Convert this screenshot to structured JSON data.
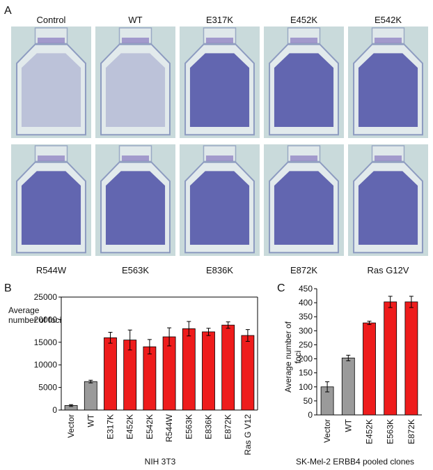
{
  "panel_a": {
    "panel": "A",
    "top_row": [
      "Control",
      "WT",
      "E317K",
      "E452K",
      "E542K"
    ],
    "bottom_row": [
      "R544W",
      "E563K",
      "E836K",
      "E872K",
      "Ras G12V"
    ]
  },
  "chart_data": [
    {
      "type": "bar",
      "panel": "B",
      "y_label": "Average number of foci",
      "x_label": "NIH 3T3",
      "categories": [
        "Vector",
        "WT",
        "E317K",
        "E452K",
        "E542K",
        "R544W",
        "E563K",
        "E836K",
        "E872K",
        "Ras G V12"
      ],
      "values": [
        1000,
        6300,
        16000,
        15500,
        14000,
        16200,
        18000,
        17300,
        18800,
        16500
      ],
      "errors": [
        200,
        300,
        1200,
        2200,
        1600,
        2000,
        1600,
        800,
        700,
        1300
      ],
      "colors": [
        "#9a9a9a",
        "#9a9a9a",
        "#ee1c1c",
        "#ee1c1c",
        "#ee1c1c",
        "#ee1c1c",
        "#ee1c1c",
        "#ee1c1c",
        "#ee1c1c",
        "#ee1c1c"
      ],
      "ylim": [
        0,
        25000
      ],
      "yticks": [
        0,
        5000,
        10000,
        15000,
        20000,
        25000
      ],
      "frame": true
    },
    {
      "type": "bar",
      "panel": "C",
      "y_label": "Average number of foci",
      "x_label": "SK-Mel-2 ERBB4 pooled clones",
      "categories": [
        "Vector",
        "WT",
        "E452K",
        "E563K",
        "E872K"
      ],
      "values": [
        100,
        203,
        328,
        403,
        403
      ],
      "errors": [
        18,
        10,
        6,
        20,
        20
      ],
      "colors": [
        "#9a9a9a",
        "#9a9a9a",
        "#ee1c1c",
        "#ee1c1c",
        "#ee1c1c"
      ],
      "ylim": [
        0,
        450
      ],
      "yticks": [
        0,
        50,
        100,
        150,
        200,
        250,
        300,
        350,
        400,
        450
      ],
      "frame": false
    }
  ]
}
